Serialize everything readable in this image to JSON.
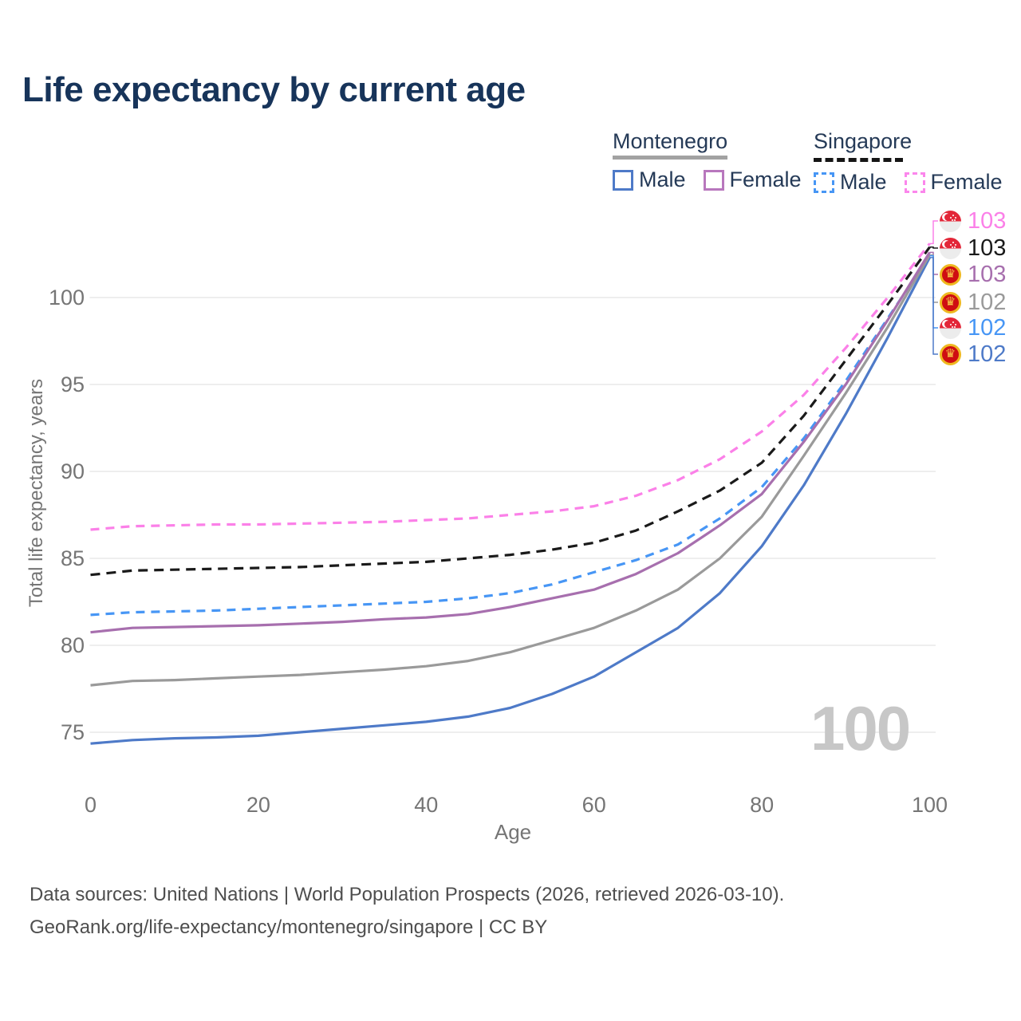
{
  "title": "Life expectancy by current age",
  "legend": {
    "groups": [
      {
        "name": "Montenegro",
        "line_style": "solid",
        "underline_color": "#a2a2a2",
        "items": [
          {
            "label": "Male",
            "color": "#4e7ac8"
          },
          {
            "label": "Female",
            "color": "#b877bd"
          }
        ]
      },
      {
        "name": "Singapore",
        "line_style": "dashed",
        "underline_color": "#151515",
        "items": [
          {
            "label": "Male",
            "color": "#4796f5"
          },
          {
            "label": "Female",
            "color": "#fb86ec"
          }
        ]
      }
    ]
  },
  "chart_data": {
    "type": "line",
    "title": "Life expectancy by current age",
    "xlabel": "Age",
    "ylabel": "Total life expectancy, years",
    "x": [
      0,
      5,
      10,
      15,
      20,
      25,
      30,
      35,
      40,
      45,
      50,
      55,
      60,
      65,
      70,
      75,
      80,
      85,
      90,
      95,
      100
    ],
    "xticks": [
      0,
      20,
      40,
      60,
      80,
      100
    ],
    "yticks": [
      75,
      80,
      85,
      90,
      95,
      100
    ],
    "xlim": [
      0,
      100
    ],
    "ylim": [
      73.5,
      104
    ],
    "grid": true,
    "legend_position": "top-right",
    "series": [
      {
        "id": "sg-female",
        "country": "Singapore",
        "sex": "Female",
        "color": "#fb80e8",
        "style": "dashed",
        "dash": "11 8",
        "flag": "sg",
        "end_label": "103",
        "end_value": 103.1,
        "values": [
          86.65,
          86.85,
          86.9,
          86.95,
          86.95,
          87.0,
          87.05,
          87.1,
          87.2,
          87.3,
          87.5,
          87.7,
          88.0,
          88.6,
          89.5,
          90.7,
          92.3,
          94.4,
          97.1,
          100.0,
          103.1
        ]
      },
      {
        "id": "sg-both",
        "country": "Singapore",
        "sex": "Both sexes",
        "color": "#1a1a1a",
        "style": "dashed",
        "dash": "12 8",
        "flag": "sg",
        "end_label": "103",
        "end_value": 102.9,
        "values": [
          84.05,
          84.3,
          84.35,
          84.4,
          84.45,
          84.5,
          84.6,
          84.7,
          84.8,
          85.0,
          85.2,
          85.5,
          85.9,
          86.6,
          87.7,
          88.9,
          90.5,
          93.2,
          96.4,
          99.6,
          102.9
        ]
      },
      {
        "id": "me-female",
        "country": "Montenegro",
        "sex": "Female",
        "color": "#a76fae",
        "style": "solid",
        "dash": null,
        "flag": "me",
        "end_label": "103",
        "end_value": 102.6,
        "values": [
          80.75,
          81.0,
          81.05,
          81.1,
          81.15,
          81.25,
          81.35,
          81.5,
          81.6,
          81.8,
          82.2,
          82.7,
          83.2,
          84.1,
          85.3,
          86.9,
          88.7,
          91.7,
          95.0,
          98.7,
          102.6
        ]
      },
      {
        "id": "me-both",
        "country": "Montenegro",
        "sex": "Both sexes",
        "color": "#9a9a9a",
        "style": "solid",
        "dash": null,
        "flag": "me",
        "end_label": "102",
        "end_value": 102.45,
        "values": [
          77.7,
          77.95,
          78.0,
          78.1,
          78.2,
          78.3,
          78.45,
          78.6,
          78.8,
          79.1,
          79.6,
          80.3,
          81.0,
          82.0,
          83.2,
          85.0,
          87.4,
          90.9,
          94.5,
          98.3,
          102.45
        ]
      },
      {
        "id": "sg-male",
        "country": "Singapore",
        "sex": "Male",
        "color": "#4796f5",
        "style": "dashed",
        "dash": "11 8",
        "flag": "sg",
        "end_label": "102",
        "end_value": 102.4,
        "values": [
          81.75,
          81.9,
          81.95,
          82.0,
          82.1,
          82.2,
          82.3,
          82.4,
          82.5,
          82.7,
          83.0,
          83.5,
          84.2,
          84.9,
          85.8,
          87.3,
          89.1,
          91.9,
          95.2,
          98.8,
          102.4
        ]
      },
      {
        "id": "me-male",
        "country": "Montenegro",
        "sex": "Male",
        "color": "#4e7ac8",
        "style": "solid",
        "dash": null,
        "flag": "me",
        "end_label": "102",
        "end_value": 102.3,
        "values": [
          74.35,
          74.55,
          74.65,
          74.7,
          74.8,
          75.0,
          75.2,
          75.4,
          75.6,
          75.9,
          76.4,
          77.2,
          78.2,
          79.6,
          81.0,
          83.0,
          85.7,
          89.2,
          93.3,
          97.7,
          102.3
        ]
      }
    ],
    "colors": {
      "grid": "#e8e8e8",
      "axis_text": "#757575"
    }
  },
  "watermark": "100",
  "footer": {
    "line1": "Data sources: United Nations | World Population Prospects (2026, retrieved 2026-03-10).",
    "line2": "GeoRank.org/life-expectancy/montenegro/singapore | CC BY"
  }
}
